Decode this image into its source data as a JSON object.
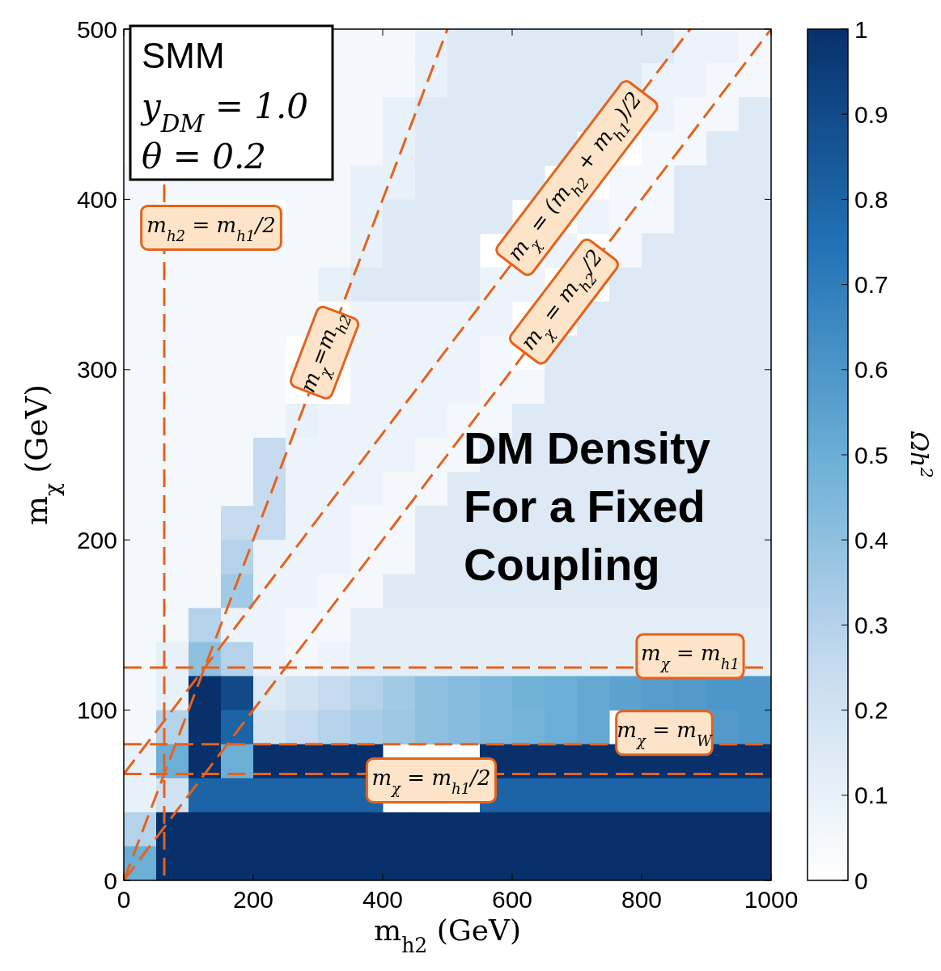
{
  "chart_data": {
    "type": "heatmap",
    "xlabel": "m$_{h2}$ (GeV)",
    "ylabel": "m$_{χ}$ (GeV)",
    "clabel": "Ωh$^{2}$",
    "xlim": [
      0,
      1000
    ],
    "ylim": [
      0,
      500
    ],
    "xticks": [
      0,
      200,
      400,
      600,
      800,
      1000
    ],
    "yticks": [
      0,
      100,
      200,
      300,
      400,
      500
    ],
    "clim": [
      0,
      1
    ],
    "cticks": [
      0.0,
      0.1,
      0.2,
      0.3,
      0.4,
      0.5,
      0.6,
      0.7,
      0.8,
      0.9,
      1.0
    ],
    "cells": [
      [
        null,
        null,
        null,
        null,
        null,
        null,
        0.05,
        0.05,
        0.05,
        0.1,
        0.15,
        0.15,
        0.15,
        0.15,
        0.15,
        0.15,
        0.15,
        0.08,
        0.08,
        0.05
      ],
      [
        null,
        null,
        null,
        null,
        null,
        null,
        0.05,
        0.05,
        0.05,
        0.1,
        0.15,
        0.15,
        0.15,
        0.15,
        0.15,
        0.15,
        0.08,
        0.08,
        0.05,
        0.05
      ],
      [
        null,
        null,
        null,
        null,
        null,
        null,
        0.05,
        0.05,
        0.1,
        0.15,
        0.15,
        0.15,
        0.15,
        0.15,
        0.15,
        null,
        0.08,
        0.05,
        0.05,
        0.15
      ],
      [
        null,
        null,
        null,
        null,
        null,
        null,
        0.05,
        0.05,
        0.1,
        0.15,
        0.15,
        0.15,
        0.15,
        0.15,
        null,
        null,
        0.05,
        0.05,
        0.15,
        0.15
      ],
      [
        0.05,
        0.05,
        0.05,
        0.05,
        0.05,
        0.05,
        0.05,
        0.1,
        0.1,
        0.15,
        0.15,
        0.15,
        0.15,
        null,
        null,
        0.05,
        0.05,
        0.15,
        0.15,
        0.15
      ],
      [
        0.05,
        null,
        null,
        null,
        null,
        0.05,
        0.05,
        0.1,
        0.15,
        0.15,
        0.15,
        0.15,
        null,
        null,
        0.08,
        0.05,
        0.05,
        0.15,
        0.15,
        0.15
      ],
      [
        0.05,
        0.05,
        0.05,
        0.05,
        0.05,
        0.05,
        0.05,
        0.1,
        0.15,
        0.15,
        0.15,
        null,
        null,
        0.08,
        null,
        0.05,
        0.15,
        0.15,
        0.15,
        0.15
      ],
      [
        0.05,
        0.05,
        0.05,
        0.05,
        0.05,
        0.05,
        0.1,
        0.15,
        0.15,
        0.15,
        0.15,
        0.08,
        0.08,
        null,
        null,
        0.15,
        0.15,
        0.15,
        0.15,
        0.15
      ],
      [
        0.05,
        0.05,
        0.05,
        0.05,
        0.05,
        0.05,
        null,
        0.08,
        0.08,
        0.08,
        0.08,
        0.08,
        null,
        null,
        0.15,
        0.15,
        0.15,
        0.15,
        0.15,
        0.15
      ],
      [
        0.05,
        0.05,
        0.05,
        0.05,
        0.05,
        null,
        null,
        0.08,
        0.08,
        0.08,
        0.08,
        0.05,
        null,
        0.15,
        0.15,
        0.15,
        0.15,
        0.15,
        0.15,
        0.15
      ],
      [
        0.05,
        0.05,
        0.05,
        0.05,
        0.05,
        null,
        null,
        0.08,
        0.08,
        0.08,
        0.08,
        0.05,
        0.05,
        0.15,
        0.15,
        0.15,
        0.15,
        0.15,
        0.15,
        0.15
      ],
      [
        0.05,
        0.05,
        0.05,
        0.05,
        0.05,
        0.1,
        0.08,
        0.08,
        0.08,
        0.08,
        0.05,
        0.05,
        0.15,
        0.15,
        0.15,
        0.15,
        0.15,
        0.15,
        0.15,
        0.15
      ],
      [
        0.05,
        0.05,
        0.05,
        0.05,
        0.25,
        0.08,
        0.08,
        0.08,
        0.08,
        0.05,
        0.05,
        0.15,
        0.15,
        0.15,
        0.15,
        0.15,
        0.15,
        0.15,
        0.15,
        0.15
      ],
      [
        0.05,
        0.05,
        0.05,
        0.05,
        0.25,
        0.08,
        0.08,
        0.08,
        0.05,
        0.05,
        0.15,
        0.15,
        0.15,
        0.15,
        0.15,
        0.15,
        0.15,
        0.15,
        0.15,
        0.15
      ],
      [
        0.05,
        0.05,
        0.05,
        0.25,
        0.25,
        0.08,
        0.08,
        0.05,
        0.05,
        0.15,
        0.15,
        0.15,
        0.15,
        0.15,
        0.15,
        0.15,
        0.15,
        0.15,
        0.15,
        0.15
      ],
      [
        0.05,
        0.05,
        0.05,
        0.3,
        0.08,
        0.08,
        0.08,
        0.05,
        0.05,
        0.15,
        0.15,
        0.15,
        0.15,
        0.15,
        0.15,
        0.15,
        0.15,
        0.15,
        0.15,
        0.15
      ],
      [
        0.05,
        0.05,
        0.05,
        0.35,
        0.08,
        0.08,
        0.05,
        0.05,
        0.15,
        0.15,
        0.15,
        0.15,
        0.15,
        0.15,
        0.15,
        0.15,
        0.15,
        0.15,
        0.15,
        0.15
      ],
      [
        0.05,
        0.05,
        0.3,
        0.08,
        0.08,
        0.05,
        0.05,
        0.12,
        0.12,
        0.12,
        0.12,
        0.12,
        0.12,
        0.12,
        0.12,
        0.12,
        0.12,
        0.12,
        0.12,
        0.12
      ],
      [
        0.05,
        0.1,
        0.4,
        0.3,
        0.08,
        0.05,
        0.08,
        0.12,
        0.12,
        0.12,
        0.12,
        0.12,
        0.12,
        0.12,
        0.12,
        0.12,
        null,
        null,
        null,
        0.12
      ],
      [
        0.05,
        0.1,
        1.0,
        0.9,
        0.15,
        0.2,
        0.25,
        0.3,
        0.35,
        0.4,
        0.42,
        0.45,
        0.48,
        0.5,
        0.52,
        0.55,
        0.57,
        0.58,
        0.6,
        0.6
      ],
      [
        0.05,
        0.3,
        1.0,
        0.8,
        0.2,
        0.25,
        0.3,
        0.33,
        0.36,
        0.4,
        0.42,
        0.45,
        0.47,
        0.5,
        0.52,
        null,
        null,
        null,
        0.58,
        0.6
      ],
      [
        0.1,
        0.5,
        1.0,
        0.5,
        1.0,
        1.0,
        1.0,
        1.0,
        null,
        null,
        null,
        1.0,
        1.0,
        1.0,
        1.0,
        1.0,
        1.0,
        1.0,
        1.0,
        1.0
      ],
      [
        0.1,
        0.2,
        0.8,
        0.8,
        0.8,
        0.8,
        0.8,
        0.8,
        null,
        null,
        null,
        0.8,
        0.8,
        0.8,
        0.8,
        0.8,
        0.8,
        0.8,
        0.8,
        0.8
      ],
      [
        0.3,
        1.0,
        1.0,
        1.0,
        1.0,
        1.0,
        1.0,
        1.0,
        1.0,
        1.0,
        1.0,
        1.0,
        1.0,
        1.0,
        1.0,
        1.0,
        1.0,
        1.0,
        1.0,
        1.0
      ],
      [
        0.5,
        1.0,
        1.0,
        1.0,
        1.0,
        1.0,
        1.0,
        1.0,
        1.0,
        1.0,
        1.0,
        1.0,
        1.0,
        1.0,
        1.0,
        1.0,
        1.0,
        1.0,
        1.0,
        1.0
      ]
    ],
    "series": [
      {
        "type": "line",
        "name": "m$_{χ}$=m$_{h2}$",
        "color": "#e5621c",
        "x": [
          0,
          500
        ],
        "values": [
          0,
          500
        ],
        "line_style": "dashed"
      },
      {
        "type": "line",
        "name": "m$_{χ}$ = (m$_{h2}$ + m$_{h1}$)/2",
        "color": "#e5621c",
        "x": [
          0,
          875
        ],
        "values": [
          62.5,
          500
        ],
        "line_style": "dashed"
      },
      {
        "type": "line",
        "name": "m$_{χ}$ = m$_{h2}$/2",
        "color": "#e5621c",
        "x": [
          0,
          1000
        ],
        "values": [
          0,
          500
        ],
        "line_style": "dashed"
      }
    ],
    "ref_lines": [
      {
        "axis": "y",
        "value": 125,
        "label": "m$_{χ}$ = m$_{h1}$",
        "color": "#e5621c",
        "line_style": "dashed"
      },
      {
        "axis": "y",
        "value": 80,
        "label": "m$_{χ}$ = m$_{W}$",
        "color": "#e5621c",
        "line_style": "dashed"
      },
      {
        "axis": "y",
        "value": 62.5,
        "label": "m$_{χ}$ = m$_{h1}$/2",
        "color": "#e5621c",
        "line_style": "dashed"
      },
      {
        "axis": "x",
        "value": 62.5,
        "label": "m$_{h2}$ = m$_{h1}$/2",
        "color": "#e5621c",
        "line_style": "dashed"
      }
    ],
    "annotations": [
      "SMM",
      "y$_{DM}$ = 1.0",
      "θ = 0.2",
      "DM Density For a Fixed Coupling"
    ],
    "grid": false
  }
}
